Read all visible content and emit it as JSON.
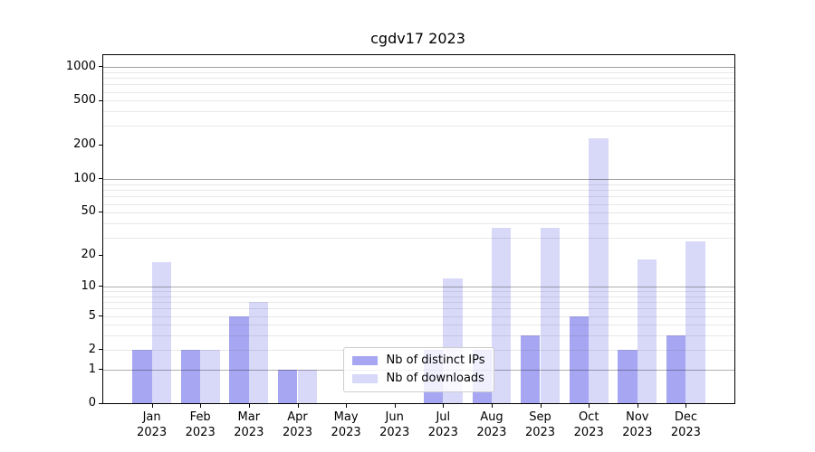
{
  "figure": {
    "background": "#ffffff"
  },
  "chart_data": {
    "type": "bar",
    "title": "cgdv17 2023",
    "categories": [
      {
        "month": "Jan",
        "year": "2023"
      },
      {
        "month": "Feb",
        "year": "2023"
      },
      {
        "month": "Mar",
        "year": "2023"
      },
      {
        "month": "Apr",
        "year": "2023"
      },
      {
        "month": "May",
        "year": "2023"
      },
      {
        "month": "Jun",
        "year": "2023"
      },
      {
        "month": "Jul",
        "year": "2023"
      },
      {
        "month": "Aug",
        "year": "2023"
      },
      {
        "month": "Sep",
        "year": "2023"
      },
      {
        "month": "Oct",
        "year": "2023"
      },
      {
        "month": "Nov",
        "year": "2023"
      },
      {
        "month": "Dec",
        "year": "2023"
      }
    ],
    "series": [
      {
        "name": "Nb of distinct IPs",
        "color": "#a6a6f2",
        "values": [
          2,
          2,
          5,
          1,
          0,
          0,
          2,
          2,
          3,
          5,
          2,
          3
        ]
      },
      {
        "name": "Nb of downloads",
        "color": "#d8d8f8",
        "values": [
          17,
          2,
          7,
          1,
          0,
          0,
          12,
          36,
          36,
          230,
          18,
          27
        ]
      }
    ],
    "y_axis": {
      "scale": "log1p",
      "tick_values": [
        0,
        1,
        2,
        5,
        10,
        20,
        50,
        100,
        200,
        500,
        1000
      ],
      "major_grid_values": [
        1,
        10,
        100,
        1000
      ],
      "minor_grid_subs": [
        3,
        4,
        5,
        6,
        7,
        8,
        9,
        10
      ],
      "minor_grid_decades": [
        1,
        10,
        100
      ],
      "top_value": 1270
    },
    "grid": {
      "major_color": "rgba(0,0,0,0.31)",
      "minor_color": "rgba(90,90,90,0.14)"
    },
    "legend": {
      "position": "lower center"
    }
  }
}
